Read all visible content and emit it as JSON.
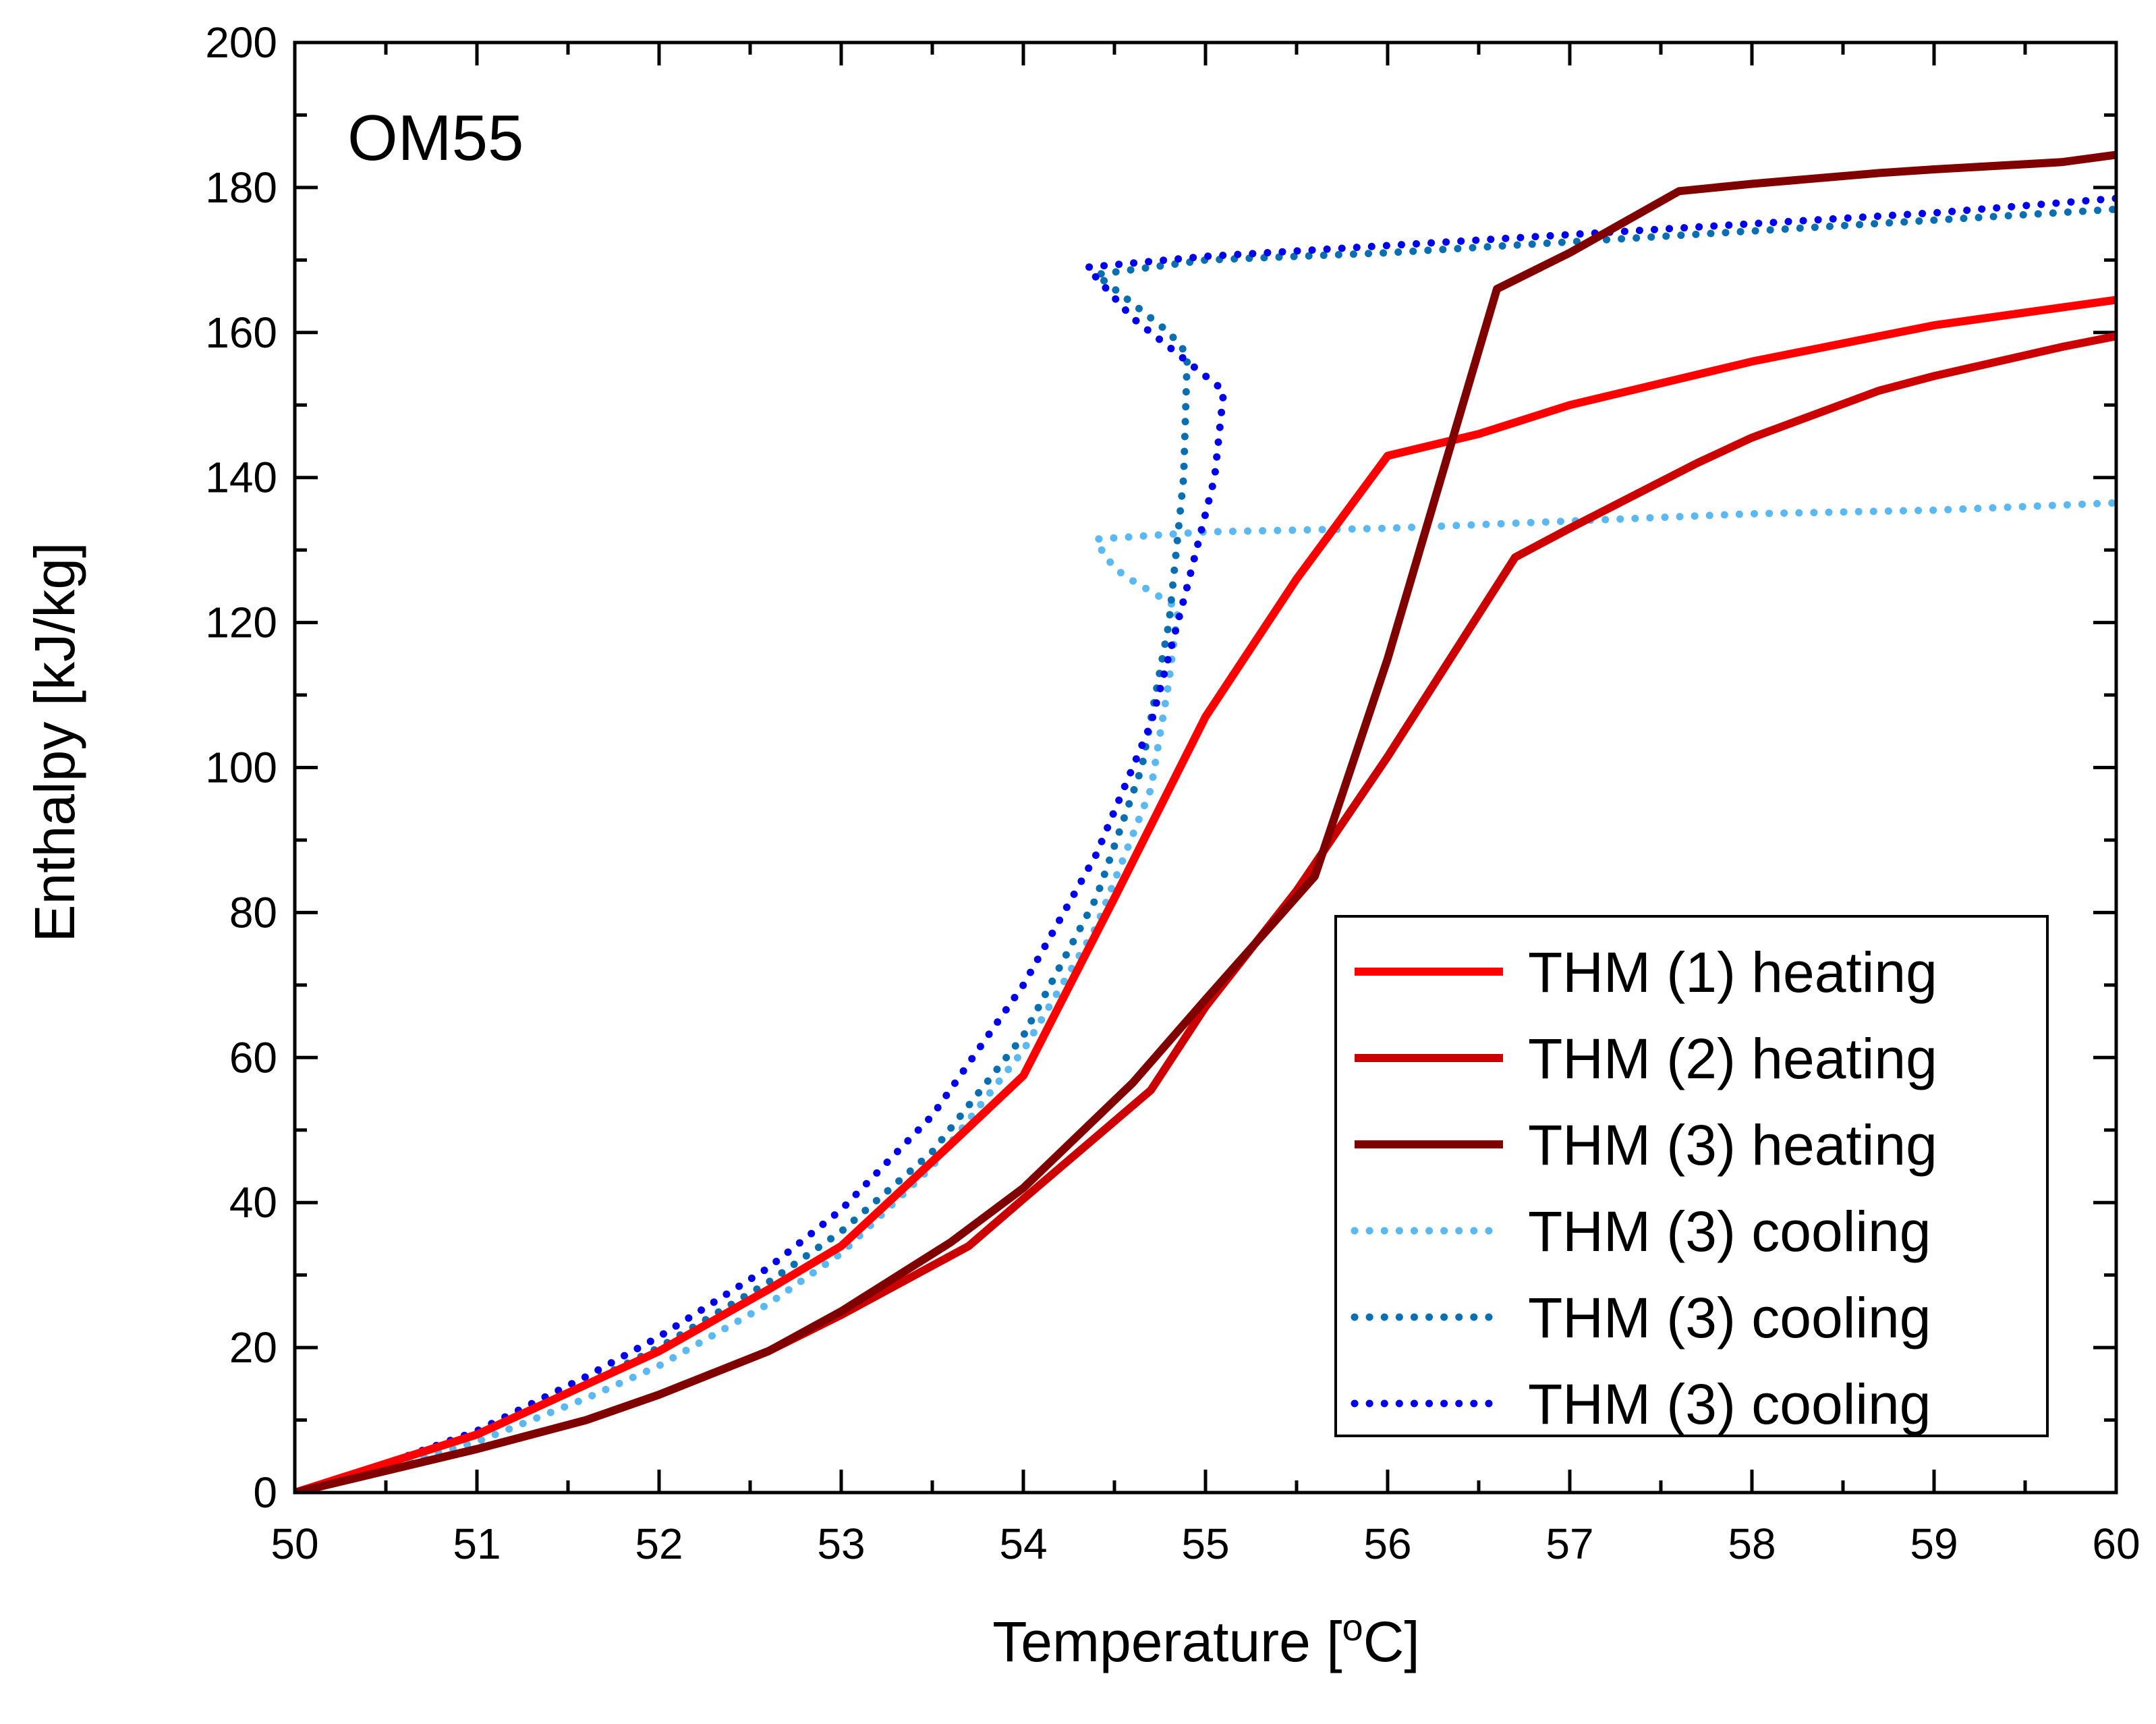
{
  "chart_data": {
    "type": "line",
    "title": "",
    "annotation": "OM55",
    "xlabel": "Temperature [",
    "xlabel_sup": "o",
    "xlabel_suffix": "C]",
    "ylabel": "Enthalpy [kJ/kg]",
    "xlim": [
      50,
      60
    ],
    "ylim": [
      0,
      200
    ],
    "xticks": [
      50,
      51,
      52,
      53,
      54,
      55,
      56,
      57,
      58,
      59,
      60
    ],
    "yticks": [
      0,
      20,
      40,
      60,
      80,
      100,
      120,
      140,
      160,
      180,
      200
    ],
    "x_minor_step": 0.5,
    "y_minor_step": 10,
    "grid": false,
    "legend_position": "bottom-right",
    "series": [
      {
        "name": "THM (1) heating",
        "color": "#ff0000",
        "style": "solid",
        "points": [
          [
            50,
            0
          ],
          [
            51,
            8
          ],
          [
            52,
            19.5
          ],
          [
            52.6,
            28
          ],
          [
            53,
            34
          ],
          [
            53.6,
            48
          ],
          [
            54,
            57.5
          ],
          [
            54.5,
            82
          ],
          [
            55,
            107
          ],
          [
            55.5,
            126
          ],
          [
            56,
            143
          ],
          [
            56.5,
            146
          ],
          [
            57,
            150
          ],
          [
            58,
            156
          ],
          [
            59,
            161
          ],
          [
            60,
            164.5
          ]
        ]
      },
      {
        "name": "THM (2) heating",
        "color": "#cc0000",
        "style": "solid",
        "points": [
          [
            50,
            0
          ],
          [
            51,
            6
          ],
          [
            51.6,
            10
          ],
          [
            52,
            13.5
          ],
          [
            52.6,
            19.5
          ],
          [
            53,
            24.5
          ],
          [
            53.7,
            34
          ],
          [
            54,
            40.5
          ],
          [
            54.7,
            55.5
          ],
          [
            55,
            67
          ],
          [
            55.5,
            83
          ],
          [
            56,
            101.5
          ],
          [
            56.7,
            129
          ],
          [
            57,
            133
          ],
          [
            57.7,
            142
          ],
          [
            58,
            145.5
          ],
          [
            58.7,
            152
          ],
          [
            59,
            154
          ],
          [
            59.7,
            158
          ],
          [
            60,
            159.5
          ]
        ]
      },
      {
        "name": "THM (3) heating",
        "color": "#800000",
        "style": "solid",
        "points": [
          [
            50,
            0
          ],
          [
            51,
            6
          ],
          [
            51.6,
            10
          ],
          [
            52,
            13.5
          ],
          [
            52.6,
            19.5
          ],
          [
            53,
            25
          ],
          [
            53.6,
            34.5
          ],
          [
            54,
            42
          ],
          [
            54.6,
            56.5
          ],
          [
            55,
            68
          ],
          [
            55.6,
            85
          ],
          [
            56,
            115
          ],
          [
            56.6,
            166
          ],
          [
            57,
            171
          ],
          [
            57.6,
            179.5
          ],
          [
            58,
            180.5
          ],
          [
            58.7,
            182
          ],
          [
            59,
            182.5
          ],
          [
            59.7,
            183.5
          ],
          [
            60,
            184.5
          ]
        ]
      },
      {
        "name": "THM (3) cooling",
        "color": "#5bb8f0",
        "style": "dotted",
        "points": [
          [
            50,
            0
          ],
          [
            50.5,
            3.5
          ],
          [
            51,
            7
          ],
          [
            51.6,
            13
          ],
          [
            52,
            17.5
          ],
          [
            52.6,
            26
          ],
          [
            53,
            33
          ],
          [
            53.5,
            45
          ],
          [
            54,
            61
          ],
          [
            54.4,
            78
          ],
          [
            54.7,
            97
          ],
          [
            54.8,
            112
          ],
          [
            54.85,
            122
          ],
          [
            54.72,
            124
          ],
          [
            54.55,
            126.5
          ],
          [
            54.45,
            129
          ],
          [
            54.4,
            131.5
          ],
          [
            55,
            132.5
          ],
          [
            56,
            133
          ],
          [
            57,
            134
          ],
          [
            58,
            135
          ],
          [
            59,
            135.5
          ],
          [
            60,
            136.5
          ]
        ]
      },
      {
        "name": "THM (3) cooling",
        "color": "#0a6fb0",
        "style": "dotted",
        "points": [
          [
            50,
            0
          ],
          [
            50.5,
            4
          ],
          [
            51,
            8
          ],
          [
            51.6,
            15
          ],
          [
            52,
            20
          ],
          [
            52.6,
            29
          ],
          [
            53,
            36
          ],
          [
            53.5,
            47
          ],
          [
            54,
            63
          ],
          [
            54.4,
            82
          ],
          [
            54.65,
            100
          ],
          [
            54.8,
            120
          ],
          [
            54.88,
            140
          ],
          [
            54.9,
            157
          ],
          [
            54.8,
            160
          ],
          [
            54.6,
            164
          ],
          [
            54.4,
            168
          ],
          [
            55,
            170
          ],
          [
            56,
            171
          ],
          [
            57,
            172.5
          ],
          [
            58,
            174
          ],
          [
            59,
            175.5
          ],
          [
            60,
            177
          ]
        ]
      },
      {
        "name": "THM (3) cooling",
        "color": "#0000ee",
        "style": "dotted",
        "points": [
          [
            50,
            0
          ],
          [
            50.5,
            4
          ],
          [
            51,
            8.5
          ],
          [
            51.6,
            16
          ],
          [
            52,
            21.5
          ],
          [
            52.6,
            31
          ],
          [
            53,
            39
          ],
          [
            53.5,
            52
          ],
          [
            54,
            70
          ],
          [
            54.4,
            88
          ],
          [
            54.7,
            106
          ],
          [
            54.9,
            125
          ],
          [
            55.05,
            140
          ],
          [
            55.1,
            152
          ],
          [
            54.9,
            156
          ],
          [
            54.6,
            162
          ],
          [
            54.35,
            169
          ],
          [
            55,
            170.5
          ],
          [
            56,
            172
          ],
          [
            57,
            173.5
          ],
          [
            58,
            175
          ],
          [
            59,
            176.5
          ],
          [
            60,
            178.5
          ]
        ]
      }
    ]
  }
}
